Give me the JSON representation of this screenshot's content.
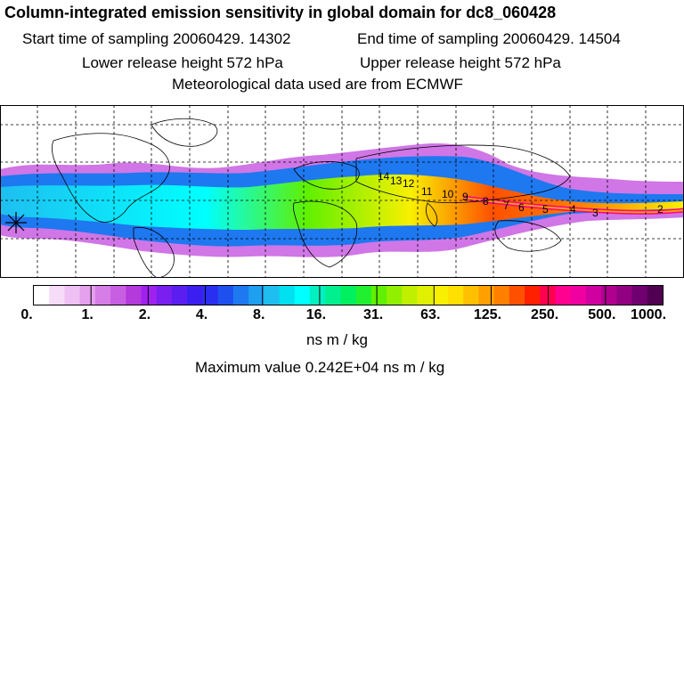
{
  "title": "Column-integrated emission sensitivity in global domain for dc8_060428",
  "start_time": "Start time of sampling 20060429. 14302",
  "end_time": "End time of sampling 20060429. 14504",
  "lower_release": "Lower release height  572 hPa",
  "upper_release": "Upper release height  572 hPa",
  "met_data": "Meteorological data used are from ECMWF",
  "colorbar": {
    "tick_labels": [
      "0.",
      "1.",
      "2.",
      "4.",
      "8.",
      "16.",
      "31.",
      "63.",
      "125.",
      "250.",
      "500.",
      "1000."
    ],
    "units": "ns m / kg",
    "colors": [
      "#ffffff",
      "#f6dcf8",
      "#efc0f3",
      "#e5a0ee",
      "#d77de8",
      "#c85ee2",
      "#b43adb",
      "#a020f0",
      "#7a1ff0",
      "#5a1ff0",
      "#3a1ff0",
      "#2a2ef0",
      "#1e50f0",
      "#1e78f0",
      "#1e9ff0",
      "#1ebff0",
      "#00e0f0",
      "#00ffff",
      "#00f0c0",
      "#00f090",
      "#00f060",
      "#20f030",
      "#60f000",
      "#90f000",
      "#c0f000",
      "#e0f000",
      "#f8f000",
      "#ffe000",
      "#ffc000",
      "#ffa000",
      "#ff8000",
      "#ff5000",
      "#ff2000",
      "#ff0050",
      "#ff0090",
      "#f000a0",
      "#d000a0",
      "#b00090",
      "#900080",
      "#700070",
      "#500050"
    ]
  },
  "max_value": "Maximum value  0.242E+04 ns m / kg",
  "chart_data": {
    "type": "heatmap",
    "title": "Column-integrated emission sensitivity in global domain for dc8_060428",
    "map_projection": "global lat-lon",
    "field": "column-integrated emission sensitivity",
    "units": "ns m / kg",
    "color_scale_breaks": [
      0,
      1,
      2,
      4,
      8,
      16,
      31,
      63,
      125,
      250,
      500,
      1000
    ],
    "max_value": 2420,
    "trajectory_day_labels": [
      "2",
      "3",
      "4",
      "5",
      "6",
      "7",
      "8",
      "9",
      "10",
      "11",
      "12",
      "13",
      "14"
    ],
    "release_height_hpa": 572
  }
}
